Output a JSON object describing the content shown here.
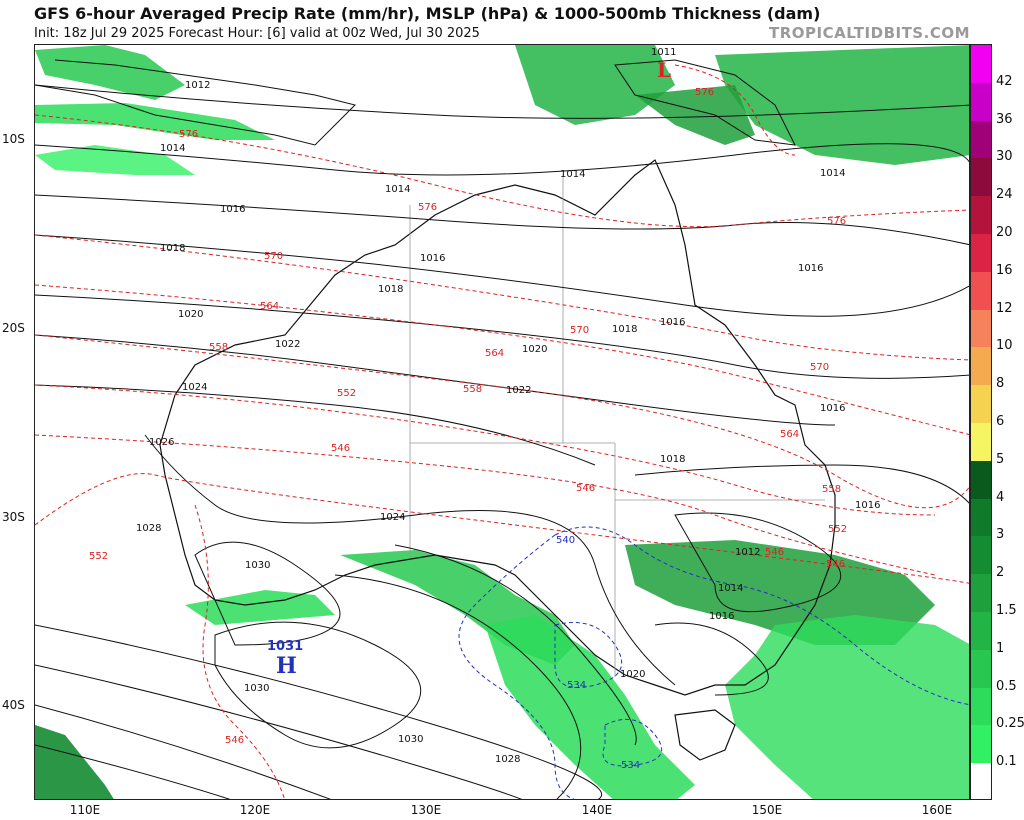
{
  "header": {
    "title": "GFS 6-hour Averaged Precip Rate (mm/hr), MSLP (hPa) & 1000-500mb Thickness (dam)",
    "subtitle": "Init: 18z Jul 29 2025   Forecast Hour: [6]   valid at 00z Wed, Jul 30 2025",
    "brand": "TROPICALTIDBITS.COM"
  },
  "axes": {
    "lat_labels": [
      "10S",
      "20S",
      "30S",
      "40S"
    ],
    "lon_labels": [
      "110E",
      "120E",
      "130E",
      "140E",
      "150E",
      "160E"
    ]
  },
  "colorbar": {
    "labels": [
      "42",
      "36",
      "30",
      "24",
      "20",
      "16",
      "12",
      "10",
      "8",
      "6",
      "5",
      "4",
      "3",
      "2",
      "1.5",
      "1",
      "0.5",
      "0.25",
      "0.1"
    ],
    "colors": [
      "#f200f2",
      "#c800c8",
      "#a00078",
      "#8c0a3c",
      "#b4143c",
      "#dc2346",
      "#f05050",
      "#f5825a",
      "#f5aa50",
      "#f5d250",
      "#f5f564",
      "#0a5a1e",
      "#0f7a2a",
      "#148c32",
      "#1ea03c",
      "#23b446",
      "#28c850",
      "#2ddc5a",
      "#32f064",
      "#ffffff"
    ]
  },
  "pressure_labels": [
    "1012",
    "1014",
    "1014",
    "1014",
    "1014",
    "1016",
    "1016",
    "1016",
    "1016",
    "1016",
    "1018",
    "1018",
    "1018",
    "1018",
    "1020",
    "1020",
    "1020",
    "1022",
    "1022",
    "1024",
    "1024",
    "1026",
    "1028",
    "1028",
    "1030",
    "1030",
    "1030",
    "1011",
    "1012",
    "1014",
    "1016",
    "1016"
  ],
  "thickness_labels": [
    "576",
    "576",
    "576",
    "576",
    "570",
    "570",
    "570",
    "564",
    "564",
    "564",
    "558",
    "558",
    "558",
    "552",
    "552",
    "552",
    "546",
    "546",
    "546",
    "546",
    "546",
    "540",
    "534",
    "534"
  ],
  "systems": {
    "high_value": "1031",
    "high_letter": "H",
    "low_value": "1011",
    "low_letter": "L"
  }
}
